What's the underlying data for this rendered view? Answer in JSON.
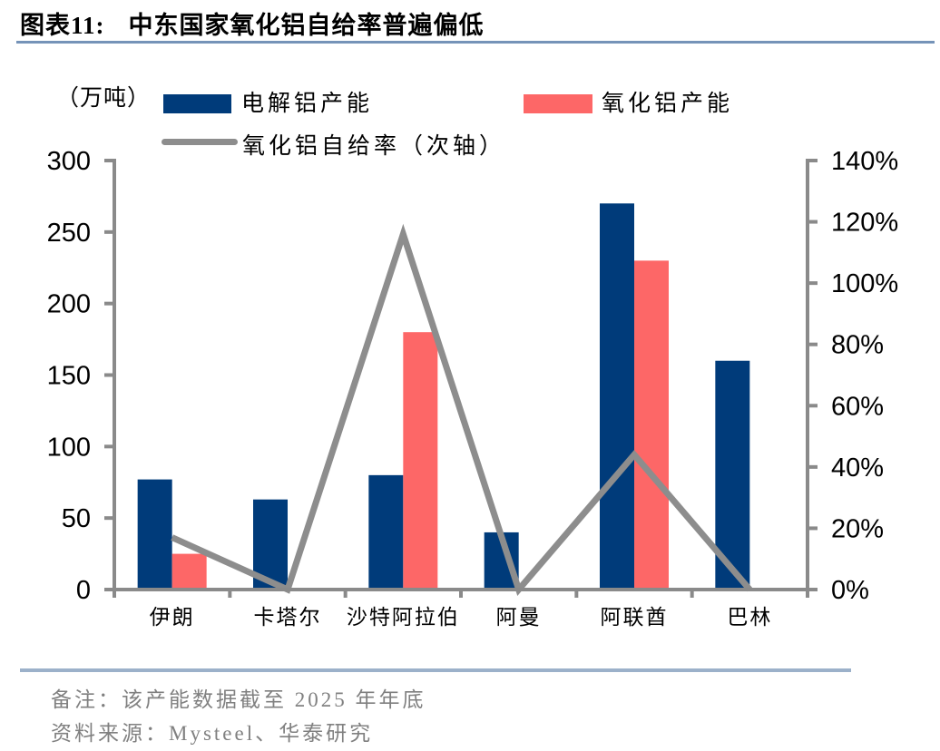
{
  "header": {
    "figure_label": "图表11:",
    "title": "中东国家氧化铝自给率普遍偏低"
  },
  "chart_data": {
    "type": "bar",
    "subtype": "grouped-bars-with-secondary-axis-line",
    "unit_label": "（万吨）",
    "categories": [
      "伊朗",
      "卡塔尔",
      "沙特阿拉伯",
      "阿曼",
      "阿联酋",
      "巴林"
    ],
    "series": [
      {
        "name": "电解铝产能",
        "type": "bar",
        "axis": "left",
        "color": "#003b7a",
        "values": [
          77,
          63,
          80,
          40,
          270,
          160
        ]
      },
      {
        "name": "氧化铝产能",
        "type": "bar",
        "axis": "left",
        "color": "#fd6767",
        "values": [
          25,
          0,
          180,
          0,
          230,
          0
        ]
      },
      {
        "name": "氧化铝自给率（次轴）",
        "type": "line",
        "axis": "right",
        "color": "#8d8d8d",
        "values_pct": [
          17,
          0,
          116,
          0,
          44,
          0
        ]
      }
    ],
    "left_axis": {
      "min": 0,
      "max": 300,
      "step": 50,
      "tick_labels": [
        "0",
        "50",
        "100",
        "150",
        "200",
        "250",
        "300"
      ]
    },
    "right_axis": {
      "min": 0,
      "max": 140,
      "step": 20,
      "tick_labels": [
        "0%",
        "20%",
        "40%",
        "60%",
        "80%",
        "100%",
        "120%",
        "140%"
      ]
    },
    "legend_position": "top",
    "grid": "off",
    "axis_color": "#8a8a8a"
  },
  "footer": {
    "note": "备注：该产能数据截至 2025 年年底",
    "source": "资料来源：Mysteel、华泰研究"
  }
}
